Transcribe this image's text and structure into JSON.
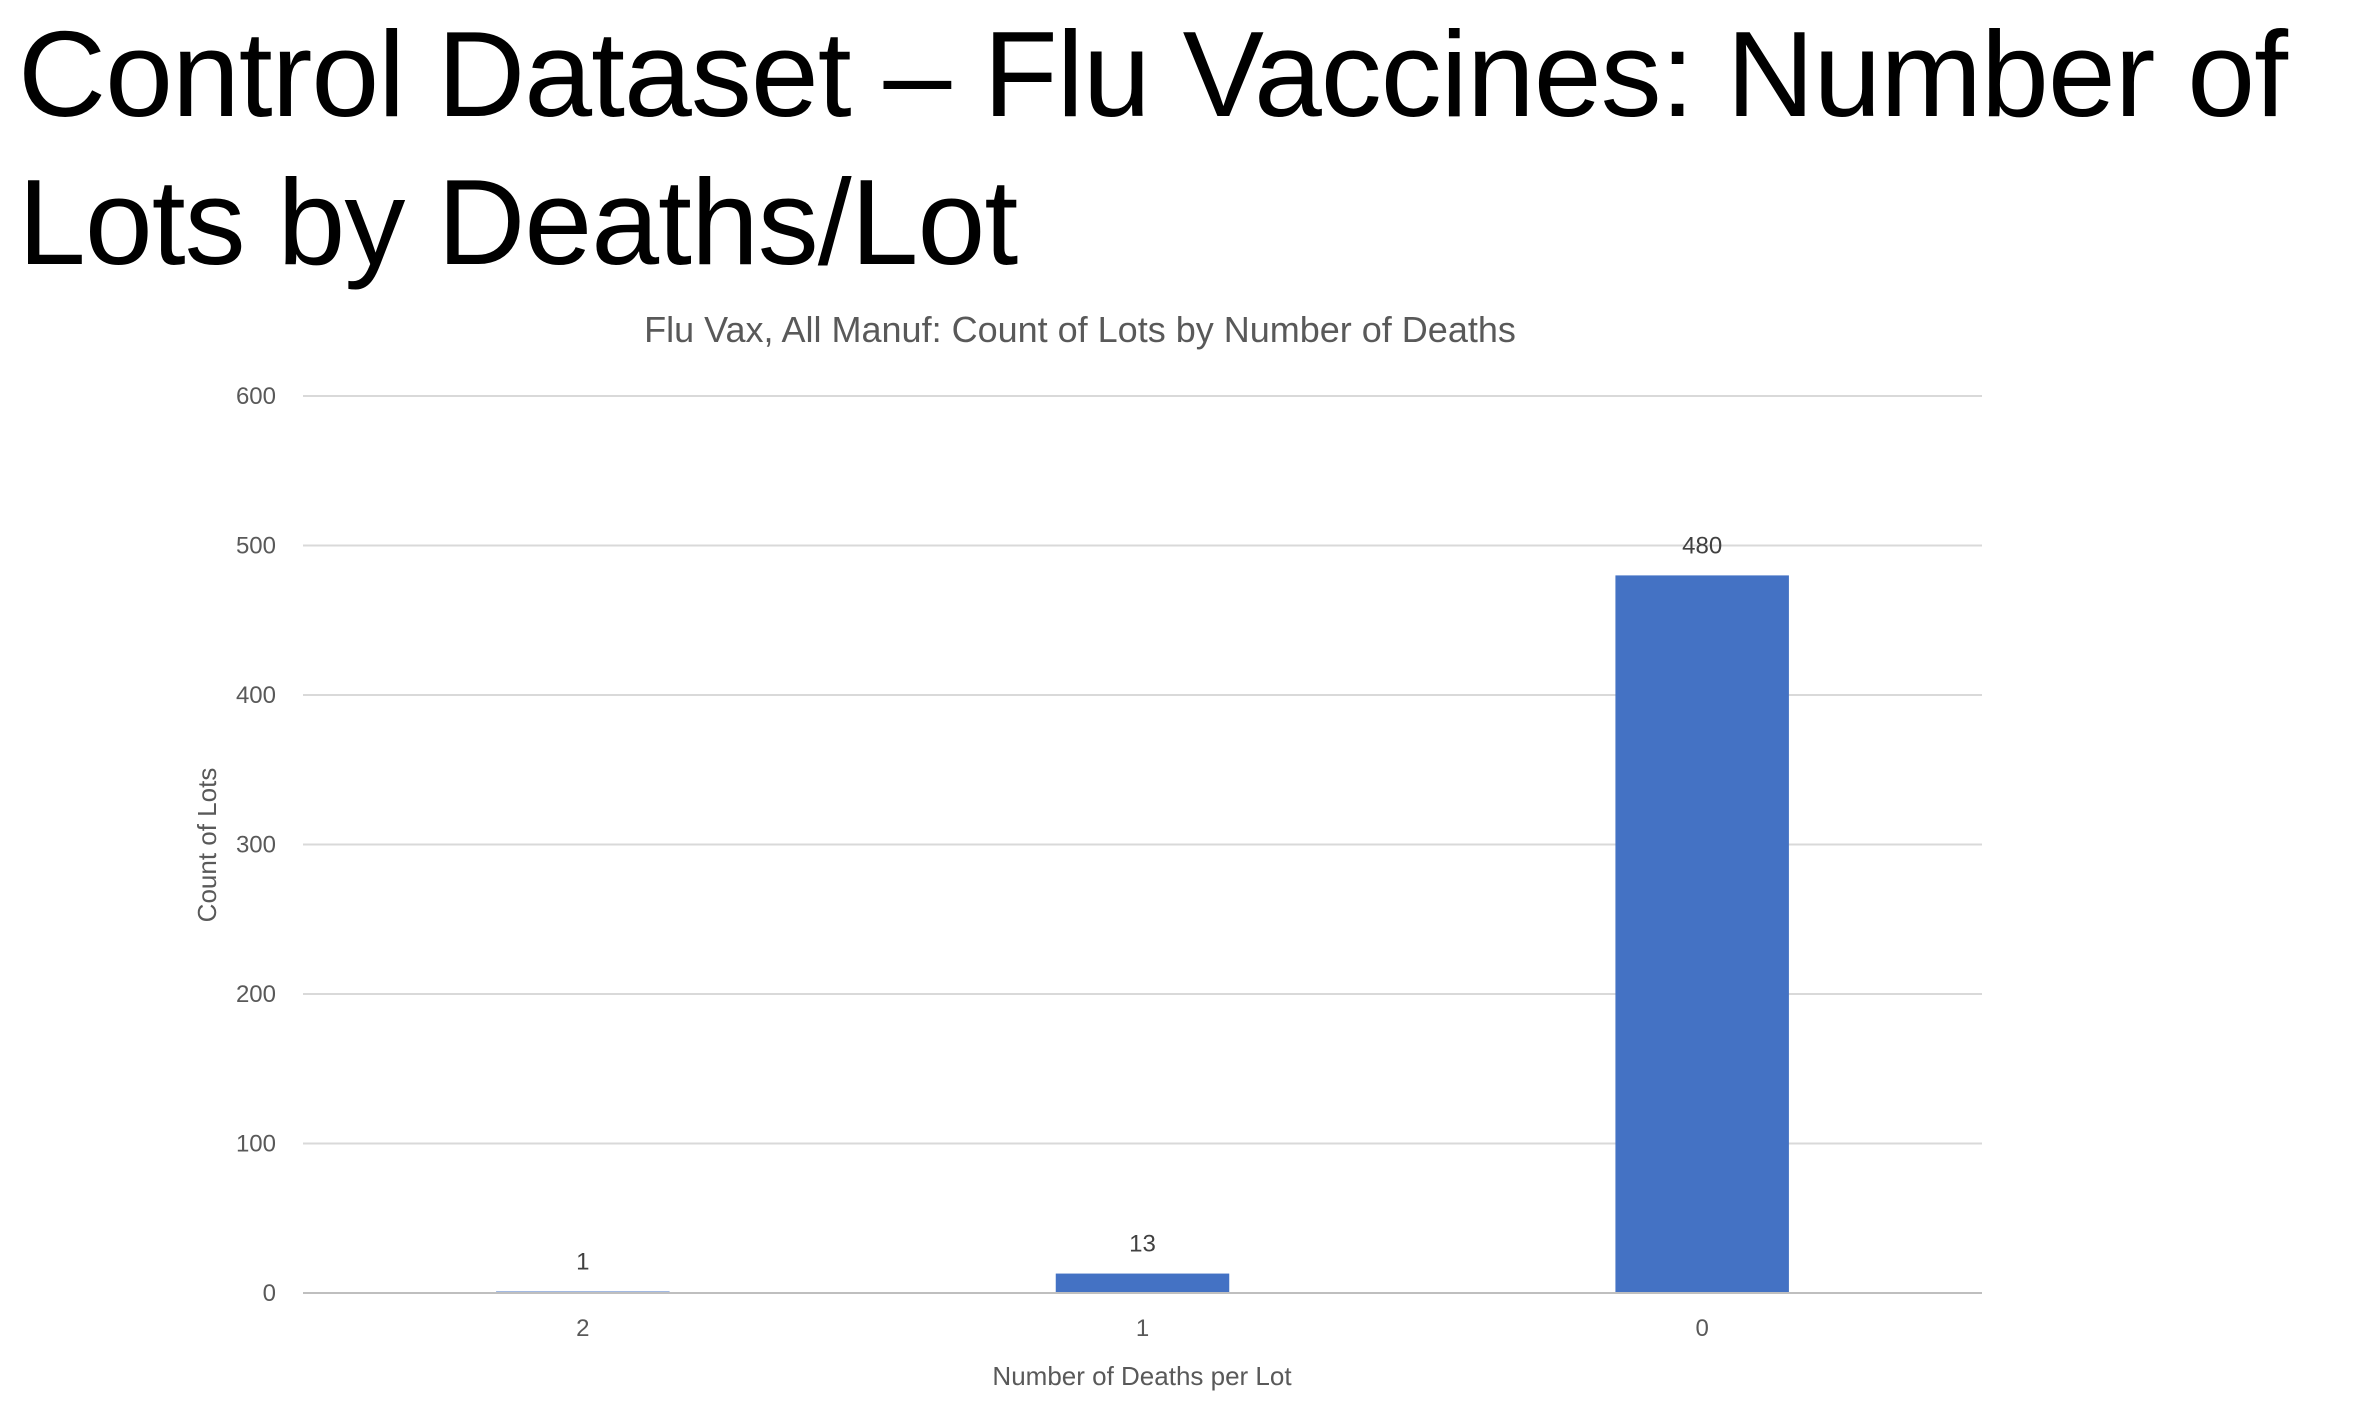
{
  "slide": {
    "title": "Control Dataset – Flu Vaccines: Number of Lots by Deaths/Lot"
  },
  "chart_data": {
    "type": "bar",
    "title": "Flu Vax, All Manuf: Count of Lots by Number of Deaths",
    "xlabel": "Number of Deaths per Lot",
    "ylabel": "Count of Lots",
    "categories": [
      "2",
      "1",
      "0"
    ],
    "values": [
      1,
      13,
      480
    ],
    "data_labels": [
      "1",
      "13",
      "480"
    ],
    "ylim": [
      0,
      600
    ],
    "yticks": [
      0,
      100,
      200,
      300,
      400,
      500,
      600
    ],
    "grid": true,
    "legend": "none",
    "bar_color": "#4472C4",
    "grid_color": "#D9D9D9"
  }
}
